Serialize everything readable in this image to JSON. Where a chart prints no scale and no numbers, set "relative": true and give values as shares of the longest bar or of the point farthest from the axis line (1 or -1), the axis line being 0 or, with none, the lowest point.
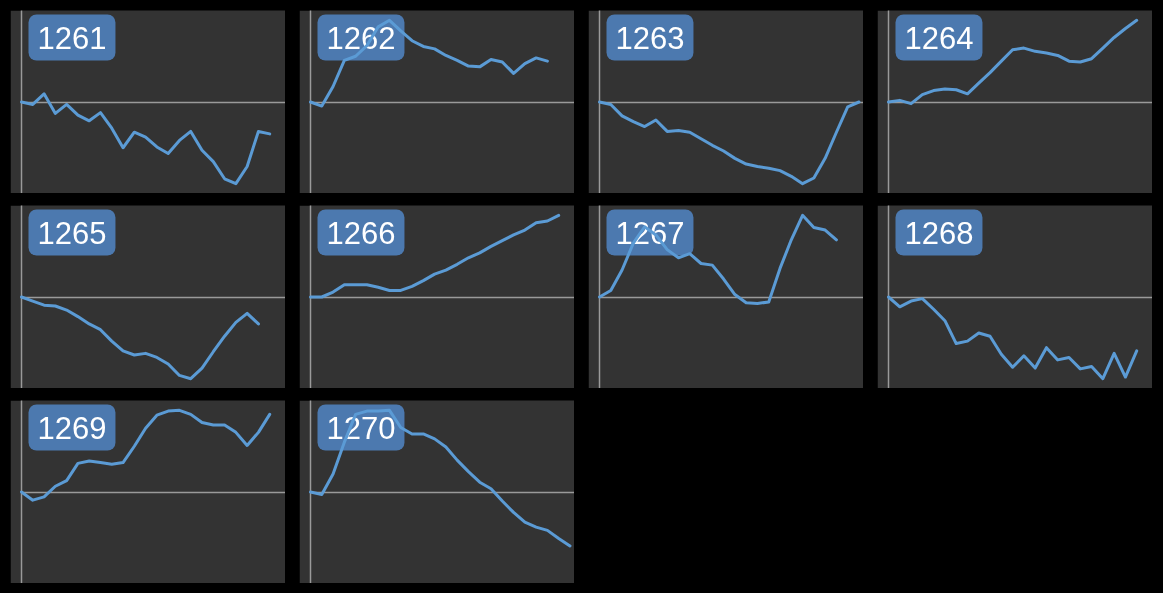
{
  "chart_data": [
    {
      "type": "line",
      "title": "1261",
      "relative": true,
      "color": "#5b9bd5",
      "categories": [
        null,
        null,
        null,
        null,
        null,
        null,
        null,
        null,
        null,
        null,
        null,
        null,
        null,
        null,
        null,
        null,
        null,
        null,
        null,
        null,
        null,
        null,
        null,
        null
      ],
      "values": [
        0,
        -0.03,
        0.1,
        -0.14,
        -0.03,
        -0.16,
        -0.23,
        -0.13,
        -0.32,
        -0.56,
        -0.37,
        -0.43,
        -0.55,
        -0.63,
        -0.47,
        -0.36,
        -0.59,
        -0.73,
        -0.94,
        -1,
        -0.79,
        -0.36,
        -0.39,
        null
      ]
    },
    {
      "type": "line",
      "title": "1262",
      "relative": true,
      "color": "#5b9bd5",
      "categories": [
        null,
        null,
        null,
        null,
        null,
        null,
        null,
        null,
        null,
        null,
        null,
        null,
        null,
        null,
        null,
        null,
        null,
        null,
        null,
        null,
        null,
        null,
        null,
        null
      ],
      "values": [
        0,
        -0.05,
        0.19,
        0.51,
        0.56,
        0.69,
        0.92,
        1,
        0.87,
        0.75,
        0.68,
        0.65,
        0.57,
        0.51,
        0.44,
        0.43,
        0.52,
        0.49,
        0.35,
        0.47,
        0.54,
        0.5,
        null,
        null
      ]
    },
    {
      "type": "line",
      "title": "1263",
      "relative": true,
      "color": "#5b9bd5",
      "categories": [
        null,
        null,
        null,
        null,
        null,
        null,
        null,
        null,
        null,
        null,
        null,
        null,
        null,
        null,
        null,
        null,
        null,
        null,
        null,
        null,
        null,
        null,
        null,
        null
      ],
      "values": [
        0,
        -0.03,
        -0.17,
        -0.24,
        -0.3,
        -0.22,
        -0.36,
        -0.35,
        -0.37,
        -0.45,
        -0.53,
        -0.6,
        -0.69,
        -0.76,
        -0.79,
        -0.81,
        -0.84,
        -0.91,
        -1,
        -0.93,
        -0.69,
        -0.37,
        -0.06,
        0
      ]
    },
    {
      "type": "line",
      "title": "1264",
      "relative": true,
      "color": "#5b9bd5",
      "categories": [
        null,
        null,
        null,
        null,
        null,
        null,
        null,
        null,
        null,
        null,
        null,
        null,
        null,
        null,
        null,
        null,
        null,
        null,
        null,
        null,
        null,
        null,
        null,
        null
      ],
      "values": [
        0,
        0.02,
        -0.02,
        0.09,
        0.14,
        0.16,
        0.15,
        0.1,
        0.23,
        0.36,
        0.5,
        0.64,
        0.66,
        0.62,
        0.6,
        0.57,
        0.5,
        0.49,
        0.53,
        0.66,
        0.79,
        0.9,
        1,
        null
      ]
    },
    {
      "type": "line",
      "title": "1265",
      "relative": true,
      "color": "#5b9bd5",
      "categories": [
        null,
        null,
        null,
        null,
        null,
        null,
        null,
        null,
        null,
        null,
        null,
        null,
        null,
        null,
        null,
        null,
        null,
        null,
        null,
        null,
        null,
        null,
        null,
        null
      ],
      "values": [
        0,
        -0.05,
        -0.1,
        -0.11,
        -0.16,
        -0.24,
        -0.33,
        -0.4,
        -0.54,
        -0.66,
        -0.71,
        -0.69,
        -0.74,
        -0.82,
        -0.96,
        -1,
        -0.87,
        -0.67,
        -0.48,
        -0.31,
        -0.2,
        -0.33,
        null,
        null
      ]
    },
    {
      "type": "line",
      "title": "1266",
      "relative": true,
      "color": "#5b9bd5",
      "categories": [
        null,
        null,
        null,
        null,
        null,
        null,
        null,
        null,
        null,
        null,
        null,
        null,
        null,
        null,
        null,
        null,
        null,
        null,
        null,
        null,
        null,
        null,
        null,
        null
      ],
      "values": [
        0,
        0,
        0.06,
        0.15,
        0.15,
        0.15,
        0.12,
        0.08,
        0.08,
        0.13,
        0.2,
        0.28,
        0.33,
        0.4,
        0.48,
        0.54,
        0.62,
        0.69,
        0.76,
        0.82,
        0.91,
        0.93,
        1,
        null
      ]
    },
    {
      "type": "line",
      "title": "1267",
      "relative": true,
      "color": "#5b9bd5",
      "categories": [
        null,
        null,
        null,
        null,
        null,
        null,
        null,
        null,
        null,
        null,
        null,
        null,
        null,
        null,
        null,
        null,
        null,
        null,
        null,
        null,
        null,
        null,
        null,
        null
      ],
      "values": [
        0,
        0.08,
        0.33,
        0.66,
        0.86,
        0.76,
        0.58,
        0.48,
        0.53,
        0.41,
        0.39,
        0.22,
        0.03,
        -0.07,
        -0.08,
        -0.06,
        0.35,
        0.7,
        1,
        0.85,
        0.82,
        0.7,
        null,
        null
      ]
    },
    {
      "type": "line",
      "title": "1268",
      "relative": true,
      "color": "#5b9bd5",
      "categories": [
        null,
        null,
        null,
        null,
        null,
        null,
        null,
        null,
        null,
        null,
        null,
        null,
        null,
        null,
        null,
        null,
        null,
        null,
        null,
        null,
        null,
        null,
        null,
        null
      ],
      "values": [
        0,
        -0.12,
        -0.05,
        -0.02,
        -0.15,
        -0.29,
        -0.57,
        -0.54,
        -0.44,
        -0.48,
        -0.7,
        -0.86,
        -0.72,
        -0.87,
        -0.62,
        -0.77,
        -0.74,
        -0.88,
        -0.85,
        -1,
        -0.69,
        -0.98,
        -0.66,
        null
      ]
    },
    {
      "type": "line",
      "title": "1269",
      "relative": true,
      "color": "#5b9bd5",
      "categories": [
        null,
        null,
        null,
        null,
        null,
        null,
        null,
        null,
        null,
        null,
        null,
        null,
        null,
        null,
        null,
        null,
        null,
        null,
        null,
        null,
        null,
        null,
        null,
        null
      ],
      "values": [
        0,
        -0.1,
        -0.06,
        0.07,
        0.14,
        0.35,
        0.38,
        0.36,
        0.34,
        0.36,
        0.56,
        0.78,
        0.94,
        0.99,
        1,
        0.95,
        0.85,
        0.82,
        0.82,
        0.73,
        0.57,
        0.73,
        0.95,
        null
      ]
    },
    {
      "type": "line",
      "title": "1270",
      "relative": true,
      "color": "#5b9bd5",
      "categories": [
        null,
        null,
        null,
        null,
        null,
        null,
        null,
        null,
        null,
        null,
        null,
        null,
        null,
        null,
        null,
        null,
        null,
        null,
        null,
        null,
        null,
        null,
        null,
        null
      ],
      "values": [
        0,
        -0.03,
        0.22,
        0.61,
        0.95,
        0.99,
        0.99,
        1,
        0.79,
        0.71,
        0.71,
        0.65,
        0.55,
        0.39,
        0.25,
        0.12,
        0.04,
        -0.11,
        -0.25,
        -0.37,
        -0.43,
        -0.47,
        -0.57,
        -0.66
      ]
    }
  ]
}
